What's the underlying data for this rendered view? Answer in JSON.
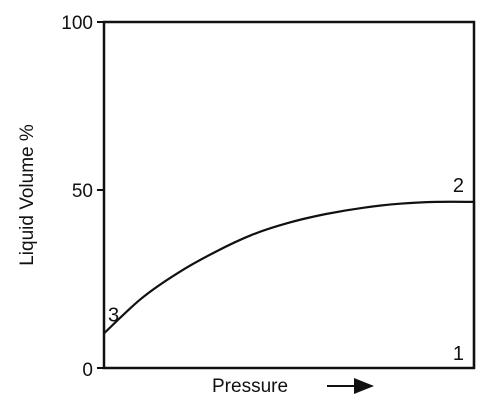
{
  "chart_data": {
    "type": "line",
    "xlabel": "Pressure",
    "ylabel": "Liquid Volume %",
    "ylim": [
      0,
      100
    ],
    "yticks": [
      "0",
      "50",
      "100"
    ],
    "grid": false,
    "series": [
      {
        "x": [
          0,
          0.1,
          0.2,
          0.3,
          0.4,
          0.5,
          0.6,
          0.7,
          0.8,
          0.9,
          1.0,
          1.0
        ],
        "y": [
          10,
          20,
          27.5,
          33.5,
          38.5,
          42,
          44.5,
          46.3,
          47.5,
          48,
          48,
          0
        ]
      }
    ],
    "point_labels": [
      {
        "text": "3",
        "x": 0,
        "y": 10
      },
      {
        "text": "2",
        "x": 1,
        "y": 48
      },
      {
        "text": "1",
        "x": 1,
        "y": 0
      }
    ]
  }
}
